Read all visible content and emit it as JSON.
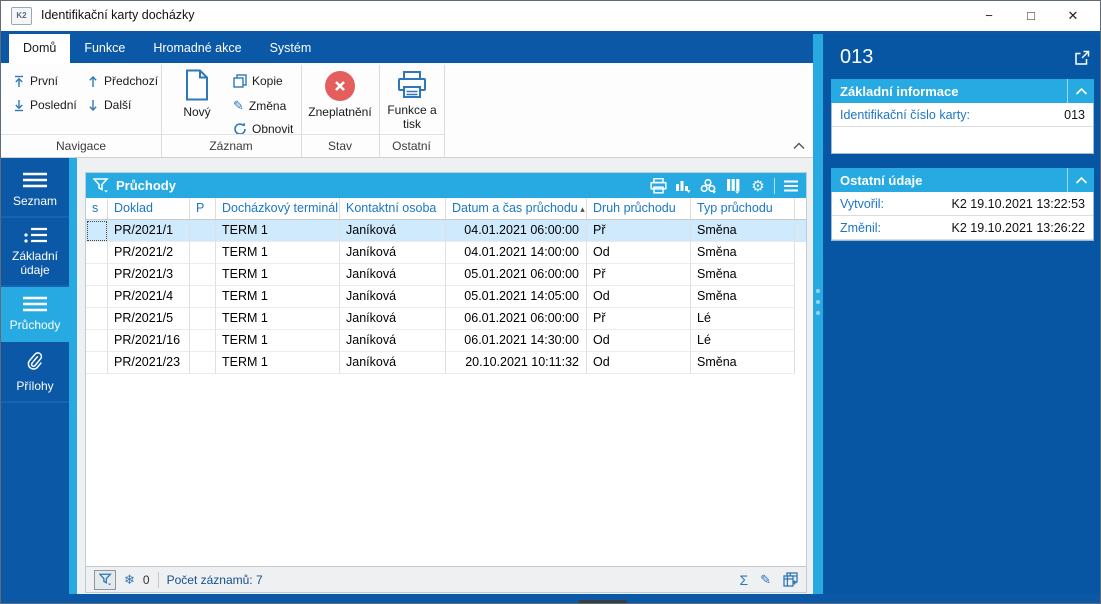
{
  "window": {
    "logo": "K2",
    "title": "Identifikační karty docházky",
    "controls": {
      "minimize": "−",
      "maximize": "□",
      "close": "✕"
    }
  },
  "tabs": [
    {
      "label": "Domů",
      "active": true
    },
    {
      "label": "Funkce",
      "active": false
    },
    {
      "label": "Hromadné akce",
      "active": false
    },
    {
      "label": "Systém",
      "active": false
    }
  ],
  "ribbon": {
    "nav": {
      "first": "První",
      "last": "Poslední",
      "prev": "Předchozí",
      "next": "Další"
    },
    "record": {
      "new": "Nový",
      "copy": "Kopie",
      "change": "Změna",
      "refresh": "Obnovit"
    },
    "state": {
      "invalidate": "Zneplatnění"
    },
    "other": {
      "print": "Funkce a tisk"
    },
    "group_labels": {
      "nav": "Navigace",
      "record": "Záznam",
      "state": "Stav",
      "other": "Ostatní"
    }
  },
  "sidebar": {
    "items": [
      {
        "label": "Seznam",
        "icon": "list-icon",
        "active": false
      },
      {
        "label": "Základní údaje",
        "icon": "detail-list-icon",
        "active": false
      },
      {
        "label": "Průchody",
        "icon": "passages-icon",
        "active": true
      },
      {
        "label": "Přílohy",
        "icon": "paperclip-icon",
        "active": false
      }
    ]
  },
  "table_panel": {
    "title": "Průchody",
    "toolbar_icons": [
      "print-icon",
      "chart-icon",
      "clover-icon",
      "columns-icon",
      "gear-icon",
      "menu-icon"
    ],
    "columns": [
      "s",
      "Doklad",
      "P",
      "Docházkový terminál",
      "Kontaktní osoba",
      "Datum a čas průchodu",
      "Druh průchodu",
      "Typ průchodu"
    ],
    "sort": {
      "column": "Datum a čas průchodu",
      "direction": "asc",
      "glyph": "▴"
    },
    "rows": [
      {
        "s": "",
        "doklad": "PR/2021/1",
        "p": "",
        "terminal": "TERM 1",
        "osoba": "Janíková",
        "datum": "04.01.2021 06:00:00",
        "druh": "Př",
        "typ": "Směna",
        "selected": true
      },
      {
        "s": "",
        "doklad": "PR/2021/2",
        "p": "",
        "terminal": "TERM 1",
        "osoba": "Janíková",
        "datum": "04.01.2021 14:00:00",
        "druh": "Od",
        "typ": "Směna",
        "selected": false
      },
      {
        "s": "",
        "doklad": "PR/2021/3",
        "p": "",
        "terminal": "TERM 1",
        "osoba": "Janíková",
        "datum": "05.01.2021 06:00:00",
        "druh": "Př",
        "typ": "Směna",
        "selected": false
      },
      {
        "s": "",
        "doklad": "PR/2021/4",
        "p": "",
        "terminal": "TERM 1",
        "osoba": "Janíková",
        "datum": "05.01.2021 14:05:00",
        "druh": "Od",
        "typ": "Směna",
        "selected": false
      },
      {
        "s": "",
        "doklad": "PR/2021/5",
        "p": "",
        "terminal": "TERM 1",
        "osoba": "Janíková",
        "datum": "06.01.2021 06:00:00",
        "druh": "Př",
        "typ": "Lé",
        "selected": false
      },
      {
        "s": "",
        "doklad": "PR/2021/16",
        "p": "",
        "terminal": "TERM 1",
        "osoba": "Janíková",
        "datum": "06.01.2021 14:30:00",
        "druh": "Od",
        "typ": "Lé",
        "selected": false
      },
      {
        "s": "",
        "doklad": "PR/2021/23",
        "p": "",
        "terminal": "TERM 1",
        "osoba": "Janíková",
        "datum": "20.10.2021 10:11:32",
        "druh": "Od",
        "typ": "Směna",
        "selected": false
      }
    ],
    "status": {
      "frozen_glyph": "❄",
      "frozen_count": "0",
      "records_label": "Počet záznamů: 7"
    }
  },
  "detail_panel": {
    "title": "013",
    "sections": [
      {
        "title": "Základní informace",
        "rows": [
          {
            "label": "Identifikační číslo karty:",
            "value": "013"
          }
        ],
        "pad": true
      },
      {
        "title": "Ostatní údaje",
        "rows": [
          {
            "label": "Vytvořil:",
            "value": "K2 19.10.2021 13:22:53"
          },
          {
            "label": "Změnil:",
            "value": "K2 19.10.2021 13:26:22"
          }
        ],
        "pad": false
      }
    ]
  },
  "icons": {
    "filter": "funnel",
    "snowflake": "❄",
    "sum": "Σ",
    "edit": "✎",
    "copy-add": "table-plus",
    "gear": "⚙",
    "sort-asc": "▴",
    "invalidate": "red-circle-x",
    "collapse": "chevron-up"
  },
  "colors": {
    "dark_blue": "#0b58a7",
    "accent_blue": "#27aae1",
    "link_blue": "#1b76c7",
    "icon_blue": "#2e77b8",
    "selected_row": "#cfeafc",
    "invalid_red": "#e55e5e"
  }
}
